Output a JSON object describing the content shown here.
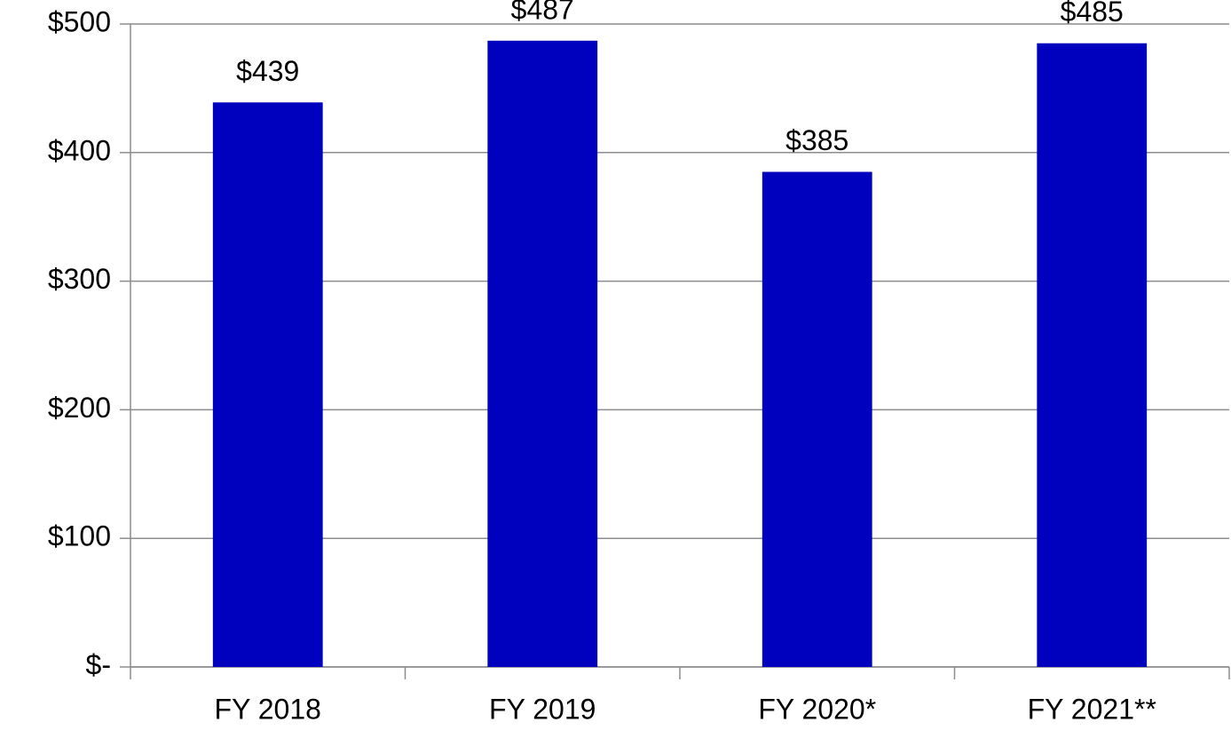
{
  "chart_data": {
    "type": "bar",
    "categories": [
      "FY 2018",
      "FY 2019",
      "FY 2020*",
      "FY 2021**"
    ],
    "values": [
      439,
      487,
      385,
      485
    ],
    "value_labels": [
      "$439",
      "$487",
      "$385",
      "$485"
    ],
    "color": "#0000bf",
    "ylim": [
      0,
      500
    ],
    "yticks": [
      {
        "value": 0,
        "label": "$-"
      },
      {
        "value": 100,
        "label": "$100"
      },
      {
        "value": 200,
        "label": "$200"
      },
      {
        "value": 300,
        "label": "$300"
      },
      {
        "value": 400,
        "label": "$400"
      },
      {
        "value": 500,
        "label": "$500"
      }
    ],
    "grid": true
  }
}
